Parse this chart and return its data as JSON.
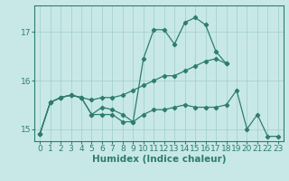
{
  "x": [
    0,
    1,
    2,
    3,
    4,
    5,
    6,
    7,
    8,
    9,
    10,
    11,
    12,
    13,
    14,
    15,
    16,
    17,
    18,
    19,
    20,
    21,
    22,
    23
  ],
  "line1": [
    14.9,
    15.55,
    15.65,
    15.7,
    15.65,
    15.3,
    15.45,
    15.4,
    15.3,
    15.15,
    16.45,
    17.05,
    17.05,
    16.75,
    17.2,
    17.3,
    17.15,
    16.6,
    16.35,
    null,
    null,
    null,
    null,
    null
  ],
  "line2": [
    14.9,
    15.55,
    15.65,
    15.7,
    15.65,
    15.6,
    15.65,
    15.65,
    15.7,
    15.8,
    15.9,
    16.0,
    16.1,
    16.1,
    16.2,
    16.3,
    16.4,
    16.45,
    16.35,
    null,
    null,
    null,
    null,
    null
  ],
  "line3": [
    14.9,
    15.55,
    15.65,
    15.7,
    15.65,
    15.3,
    15.3,
    15.3,
    15.15,
    15.15,
    15.3,
    15.4,
    15.4,
    15.45,
    15.5,
    15.45,
    15.45,
    15.45,
    15.5,
    15.8,
    15.0,
    15.3,
    14.85,
    14.85
  ],
  "color": "#2e7d6e",
  "bg_color": "#c8e8e8",
  "grid_color": "#a0cccc",
  "xlabel": "Humidex (Indice chaleur)",
  "ylim": [
    14.75,
    17.55
  ],
  "xlim": [
    -0.5,
    23.5
  ],
  "yticks": [
    15,
    16,
    17
  ],
  "xticks": [
    0,
    1,
    2,
    3,
    4,
    5,
    6,
    7,
    8,
    9,
    10,
    11,
    12,
    13,
    14,
    15,
    16,
    17,
    18,
    19,
    20,
    21,
    22,
    23
  ],
  "xlabel_fontsize": 7.5,
  "tick_fontsize": 6.5,
  "marker": "D",
  "markersize": 2.2,
  "linewidth": 0.9
}
